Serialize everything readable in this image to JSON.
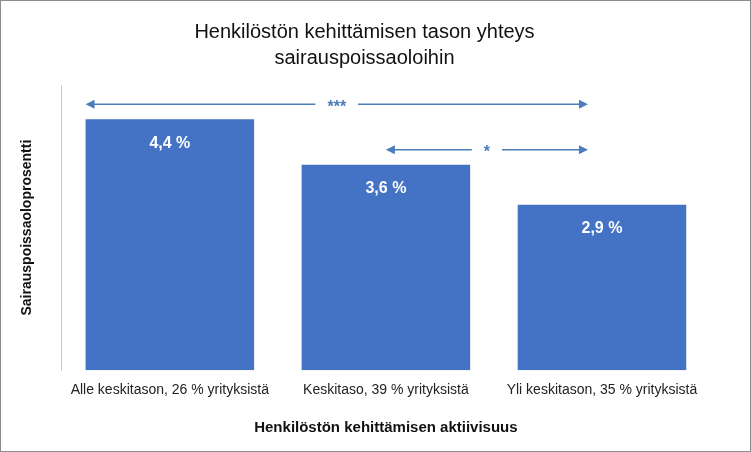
{
  "chart_data": {
    "type": "bar",
    "title": [
      "Henkilöstön kehittämisen tason yhteys",
      "sairauspoissaoloihin"
    ],
    "x_label": "Henkilöstön kehittämisen aktiivisuus",
    "y_label": "Sairauspoissaoloprosentti",
    "categories": [
      "Alle keskitason, 26 % yrityksistä",
      "Keskitaso, 39 % yrityksistä",
      "Yli keskitason, 35 % yrityksistä"
    ],
    "values": [
      4.4,
      3.6,
      2.9
    ],
    "value_labels": [
      "4,4 %",
      "3,6 %",
      "2,9 %"
    ],
    "color": "#4472c4",
    "ylim": [
      0,
      5
    ],
    "grid": false,
    "data_labels": true,
    "tick_labels": "x",
    "annotations": [
      {
        "text": "***",
        "from": "Alle keskitason, 26 % yrityksistä",
        "to": "Yli keskitason, 35 % yrityksistä"
      },
      {
        "text": "*",
        "from": "Keskitaso, 39 % yrityksistä",
        "to": "Yli keskitason, 35 % yrityksistä"
      }
    ]
  }
}
